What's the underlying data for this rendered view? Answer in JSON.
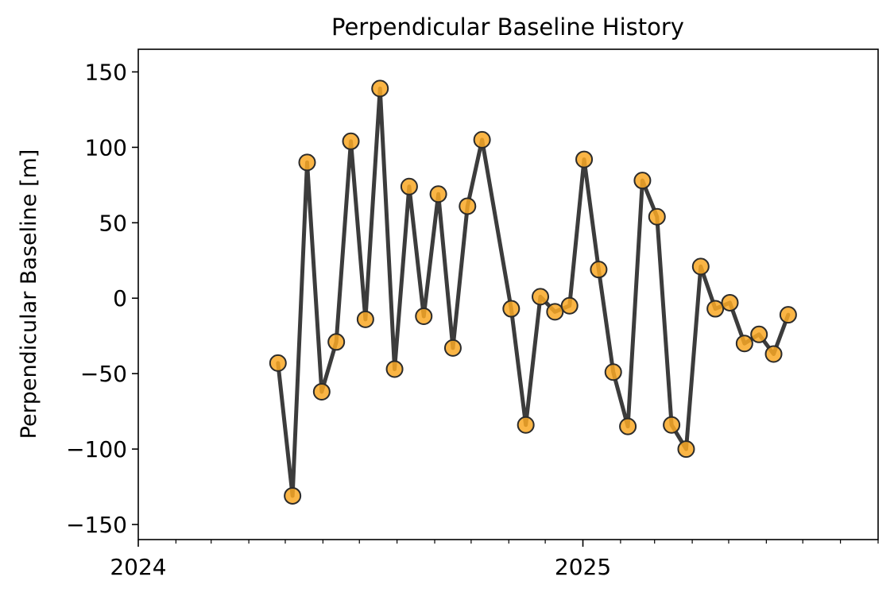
{
  "chart_data": {
    "type": "line",
    "title": "Perpendicular Baseline History",
    "xlabel": "",
    "ylabel": "Perpendicular Baseline [m]",
    "x_axis": {
      "type": "date",
      "range": [
        "2024-01-01",
        "2025-09-01"
      ],
      "major_ticks": [
        {
          "value": "2024-01-01",
          "label": "2024"
        },
        {
          "value": "2025-01-01",
          "label": "2025"
        }
      ],
      "minor_ticks_monthly": true
    },
    "y_axis": {
      "range": [
        -160,
        165
      ],
      "ticks": [
        -150,
        -100,
        -50,
        0,
        50,
        100,
        150
      ],
      "tick_labels": [
        "−150",
        "−100",
        "−50",
        "0",
        "50",
        "100",
        "150"
      ]
    },
    "grid": false,
    "legend": "none",
    "colors": {
      "line": "#3c3c3c",
      "marker_fill": "#f9a825",
      "marker_edge": "#2b2b2b"
    },
    "series": [
      {
        "points": [
          {
            "x": "2024-04-25",
            "y": -43
          },
          {
            "x": "2024-05-07",
            "y": -131
          },
          {
            "x": "2024-05-19",
            "y": 90
          },
          {
            "x": "2024-05-31",
            "y": -62
          },
          {
            "x": "2024-06-12",
            "y": -29
          },
          {
            "x": "2024-06-24",
            "y": 104
          },
          {
            "x": "2024-07-06",
            "y": -14
          },
          {
            "x": "2024-07-18",
            "y": 139
          },
          {
            "x": "2024-07-30",
            "y": -47
          },
          {
            "x": "2024-08-11",
            "y": 74
          },
          {
            "x": "2024-08-23",
            "y": -12
          },
          {
            "x": "2024-09-04",
            "y": 69
          },
          {
            "x": "2024-09-16",
            "y": -33
          },
          {
            "x": "2024-09-28",
            "y": 61
          },
          {
            "x": "2024-10-10",
            "y": 105
          },
          {
            "x": "2024-11-03",
            "y": -7
          },
          {
            "x": "2024-11-15",
            "y": -84
          },
          {
            "x": "2024-11-27",
            "y": 1
          },
          {
            "x": "2024-12-09",
            "y": -9
          },
          {
            "x": "2024-12-21",
            "y": -5
          },
          {
            "x": "2025-01-02",
            "y": 92
          },
          {
            "x": "2025-01-14",
            "y": 19
          },
          {
            "x": "2025-01-26",
            "y": -49
          },
          {
            "x": "2025-02-07",
            "y": -85
          },
          {
            "x": "2025-02-19",
            "y": 78
          },
          {
            "x": "2025-03-03",
            "y": 54
          },
          {
            "x": "2025-03-15",
            "y": -84
          },
          {
            "x": "2025-03-27",
            "y": -100
          },
          {
            "x": "2025-04-08",
            "y": 21
          },
          {
            "x": "2025-04-20",
            "y": -7
          },
          {
            "x": "2025-05-02",
            "y": -3
          },
          {
            "x": "2025-05-14",
            "y": -30
          },
          {
            "x": "2025-05-26",
            "y": -24
          },
          {
            "x": "2025-06-07",
            "y": -37
          },
          {
            "x": "2025-06-19",
            "y": -11
          }
        ]
      }
    ]
  }
}
